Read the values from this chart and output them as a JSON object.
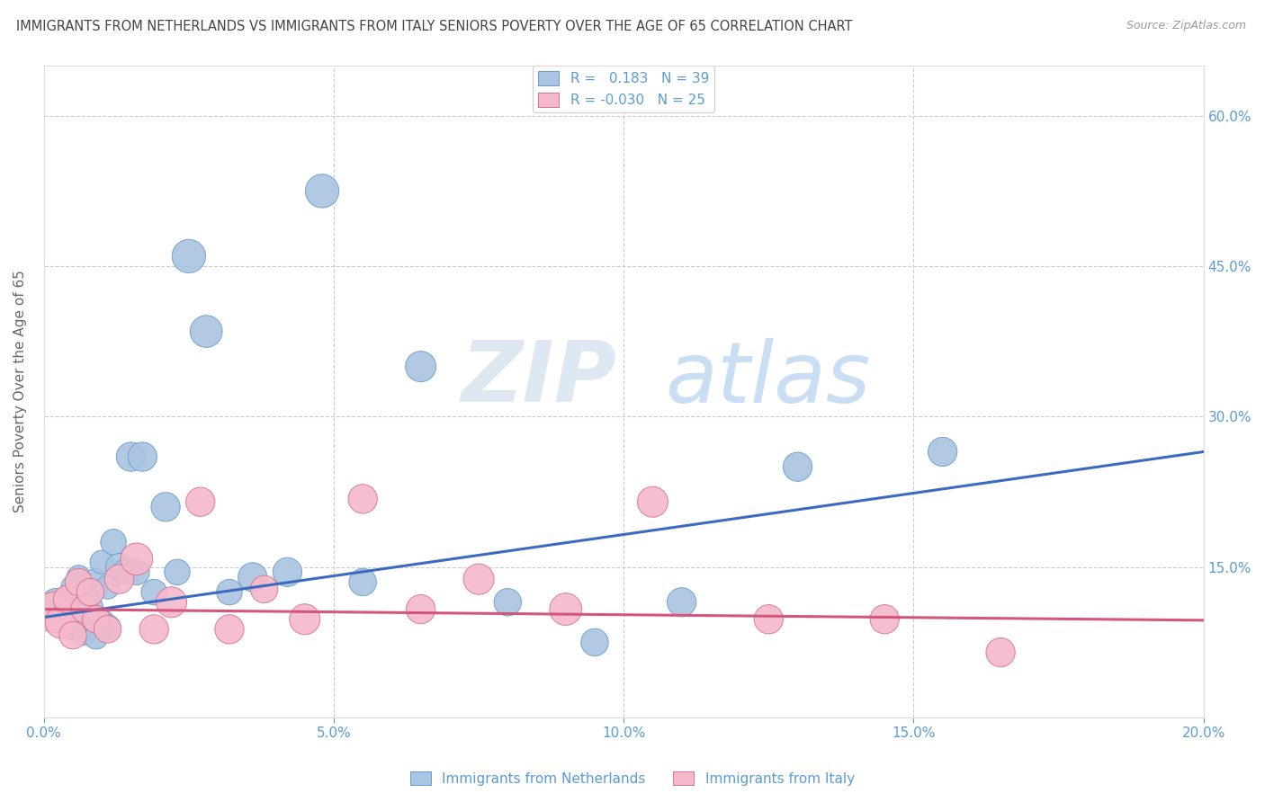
{
  "title": "IMMIGRANTS FROM NETHERLANDS VS IMMIGRANTS FROM ITALY SENIORS POVERTY OVER THE AGE OF 65 CORRELATION CHART",
  "source": "Source: ZipAtlas.com",
  "ylabel": "Seniors Poverty Over the Age of 65",
  "xlim": [
    0.0,
    0.2
  ],
  "ylim": [
    0.0,
    0.65
  ],
  "xticks": [
    0.0,
    0.05,
    0.1,
    0.15,
    0.2
  ],
  "yticks": [
    0.0,
    0.15,
    0.3,
    0.45,
    0.6
  ],
  "xtick_labels": [
    "0.0%",
    "5.0%",
    "10.0%",
    "15.0%",
    "20.0%"
  ],
  "ytick_labels": [
    "",
    "15.0%",
    "30.0%",
    "45.0%",
    "60.0%"
  ],
  "legend1_label": "Immigrants from Netherlands",
  "legend2_label": "Immigrants from Italy",
  "R_netherlands": 0.183,
  "N_netherlands": 39,
  "R_italy": -0.03,
  "N_italy": 25,
  "netherlands_color": "#aac4e2",
  "netherlands_edge": "#6a9cc9",
  "netherlands_line": "#3d6abf",
  "italy_color": "#f5b8cb",
  "italy_edge": "#d87090",
  "italy_line": "#d4567a",
  "background_color": "#ffffff",
  "grid_color": "#cccccc",
  "title_color": "#444444",
  "tick_color": "#5b9bd5",
  "netherlands_x": [
    0.002,
    0.003,
    0.004,
    0.004,
    0.005,
    0.005,
    0.006,
    0.006,
    0.007,
    0.007,
    0.008,
    0.009,
    0.009,
    0.01,
    0.01,
    0.011,
    0.011,
    0.012,
    0.013,
    0.014,
    0.015,
    0.016,
    0.017,
    0.019,
    0.021,
    0.023,
    0.025,
    0.028,
    0.032,
    0.036,
    0.042,
    0.048,
    0.055,
    0.065,
    0.08,
    0.095,
    0.11,
    0.13,
    0.155
  ],
  "netherlands_y": [
    0.115,
    0.105,
    0.12,
    0.095,
    0.13,
    0.09,
    0.1,
    0.14,
    0.085,
    0.125,
    0.11,
    0.135,
    0.08,
    0.095,
    0.155,
    0.09,
    0.13,
    0.175,
    0.15,
    0.145,
    0.26,
    0.145,
    0.26,
    0.125,
    0.21,
    0.145,
    0.46,
    0.385,
    0.125,
    0.14,
    0.145,
    0.525,
    0.135,
    0.35,
    0.115,
    0.075,
    0.115,
    0.25,
    0.265
  ],
  "netherlands_s": [
    40,
    35,
    30,
    35,
    30,
    35,
    40,
    30,
    35,
    30,
    35,
    40,
    30,
    35,
    30,
    35,
    30,
    35,
    40,
    35,
    45,
    35,
    45,
    35,
    45,
    35,
    60,
    55,
    35,
    45,
    45,
    60,
    40,
    50,
    40,
    40,
    45,
    45,
    45
  ],
  "italy_x": [
    0.002,
    0.003,
    0.004,
    0.005,
    0.006,
    0.007,
    0.008,
    0.009,
    0.011,
    0.013,
    0.016,
    0.019,
    0.022,
    0.027,
    0.032,
    0.038,
    0.045,
    0.055,
    0.065,
    0.075,
    0.09,
    0.105,
    0.125,
    0.145,
    0.165
  ],
  "italy_y": [
    0.105,
    0.095,
    0.118,
    0.082,
    0.135,
    0.108,
    0.125,
    0.098,
    0.088,
    0.138,
    0.158,
    0.088,
    0.115,
    0.215,
    0.088,
    0.128,
    0.098,
    0.218,
    0.108,
    0.138,
    0.108,
    0.215,
    0.098,
    0.098,
    0.065
  ],
  "italy_s": [
    90,
    55,
    40,
    40,
    40,
    40,
    40,
    40,
    40,
    45,
    55,
    45,
    50,
    45,
    45,
    40,
    50,
    45,
    45,
    50,
    55,
    50,
    45,
    45,
    45
  ],
  "neth_trend_x": [
    0.0,
    0.2
  ],
  "neth_trend_y": [
    0.1,
    0.265
  ],
  "italy_trend_x": [
    0.0,
    0.2
  ],
  "italy_trend_y": [
    0.108,
    0.097
  ]
}
